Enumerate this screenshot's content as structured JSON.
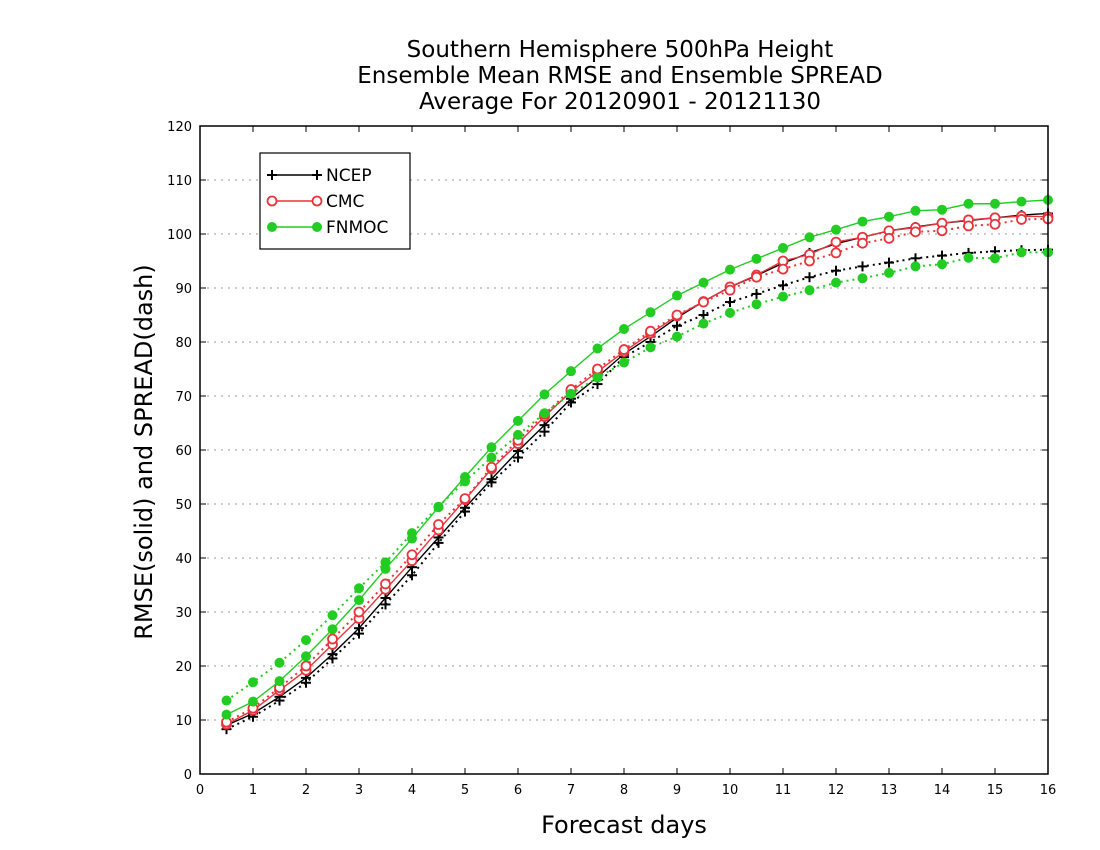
{
  "chart_data": {
    "type": "line",
    "title": [
      "Southern Hemisphere 500hPa Height",
      "Ensemble Mean RMSE and Ensemble SPREAD",
      "Average For 20120901 - 20121130"
    ],
    "xlabel": "Forecast days",
    "ylabel": "RMSE(solid) and SPREAD(dash)",
    "xlim": [
      0,
      16
    ],
    "ylim": [
      0,
      120
    ],
    "xticks": [
      "0",
      "1",
      "2",
      "3",
      "4",
      "5",
      "6",
      "7",
      "8",
      "9",
      "10",
      "11",
      "12",
      "13",
      "14",
      "15",
      "16"
    ],
    "yticks": [
      "0",
      "10",
      "20",
      "30",
      "40",
      "50",
      "60",
      "70",
      "80",
      "90",
      "100",
      "110",
      "120"
    ],
    "grid": "horizontal dotted",
    "legend_position": "top-left",
    "x": [
      0.5,
      1,
      1.5,
      2,
      2.5,
      3,
      3.5,
      4,
      4.5,
      5,
      5.5,
      6,
      6.5,
      7,
      7.5,
      8,
      8.5,
      9,
      9.5,
      10,
      10.5,
      11,
      11.5,
      12,
      12.5,
      13,
      13.5,
      14,
      14.5,
      15,
      15.5,
      16
    ],
    "series": [
      {
        "name": "NCEP",
        "style": "solid",
        "color": "#000000",
        "marker": "plus",
        "values": [
          9.0,
          11.2,
          14.3,
          17.8,
          22.2,
          27.0,
          32.6,
          38.3,
          43.8,
          49.3,
          54.6,
          59.8,
          64.6,
          69.5,
          73.5,
          77.8,
          81.0,
          84.5,
          87.5,
          90.2,
          92.3,
          94.6,
          96.5,
          98.2,
          99.4,
          100.6,
          101.3,
          102.0,
          102.5,
          103.0,
          103.5,
          103.8
        ]
      },
      {
        "name": "NCEP spread",
        "style": "dotted",
        "color": "#000000",
        "marker": "plus",
        "values": [
          8.3,
          10.6,
          13.6,
          16.9,
          21.4,
          26.0,
          31.4,
          36.8,
          42.8,
          48.6,
          54.0,
          58.6,
          63.4,
          68.8,
          72.2,
          77.2,
          80.0,
          83.0,
          85.0,
          87.4,
          88.9,
          90.5,
          92.0,
          93.2,
          94.0,
          94.7,
          95.5,
          96.0,
          96.5,
          96.8,
          97.0,
          97.1
        ]
      },
      {
        "name": "CMC",
        "style": "solid",
        "color": "#e8343c",
        "marker": "open-circle",
        "values": [
          9.2,
          11.8,
          15.5,
          19.2,
          24.0,
          28.8,
          34.2,
          39.5,
          45.2,
          50.8,
          56.5,
          61.2,
          66.2,
          70.8,
          74.5,
          78.2,
          81.6,
          84.8,
          87.5,
          90.2,
          92.4,
          95.0,
          96.2,
          98.5,
          99.4,
          100.6,
          101.2,
          102.0,
          102.6,
          103.0,
          103.3,
          103.2
        ]
      },
      {
        "name": "CMC spread",
        "style": "dotted",
        "color": "#e8343c",
        "marker": "open-circle",
        "values": [
          9.6,
          12.2,
          16.0,
          20.0,
          25.0,
          30.0,
          35.2,
          40.6,
          46.2,
          51.0,
          56.8,
          61.8,
          66.6,
          71.2,
          75.0,
          78.6,
          82.0,
          85.0,
          87.4,
          89.6,
          92.0,
          93.5,
          95.0,
          96.5,
          98.3,
          99.2,
          100.4,
          100.6,
          101.5,
          101.8,
          102.7,
          102.8
        ]
      },
      {
        "name": "FNMOC",
        "style": "solid",
        "color": "#22cc22",
        "marker": "filled-circle",
        "values": [
          11.0,
          13.4,
          17.2,
          21.8,
          26.8,
          32.2,
          38.0,
          43.6,
          49.4,
          55.0,
          60.5,
          65.4,
          70.3,
          74.6,
          78.8,
          82.4,
          85.5,
          88.6,
          91.0,
          93.4,
          95.4,
          97.4,
          99.4,
          100.8,
          102.3,
          103.2,
          104.3,
          104.5,
          105.6,
          105.6,
          106.0,
          106.3
        ]
      },
      {
        "name": "FNMOC spread",
        "style": "dotted",
        "color": "#22cc22",
        "marker": "filled-circle",
        "values": [
          13.6,
          17.0,
          20.6,
          24.8,
          29.4,
          34.4,
          39.2,
          44.6,
          49.5,
          54.2,
          58.6,
          62.8,
          66.8,
          70.4,
          73.4,
          76.2,
          79.0,
          81.0,
          83.4,
          85.4,
          87.0,
          88.4,
          89.6,
          91.0,
          91.8,
          92.8,
          94.0,
          94.4,
          95.6,
          95.5,
          96.6,
          96.6
        ]
      }
    ],
    "legend": [
      {
        "label": "NCEP",
        "color": "#000000",
        "marker": "plus"
      },
      {
        "label": "CMC",
        "color": "#e8343c",
        "marker": "open-circle"
      },
      {
        "label": "FNMOC",
        "color": "#22cc22",
        "marker": "filled-circle"
      }
    ]
  }
}
